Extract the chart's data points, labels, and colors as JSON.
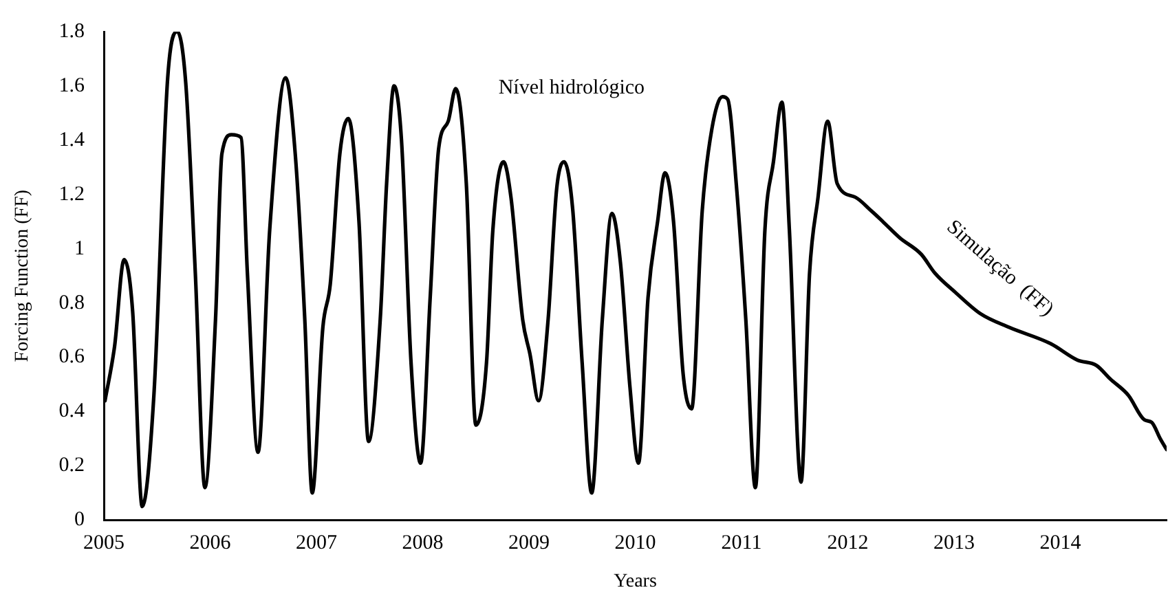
{
  "chart_data": {
    "type": "line",
    "xlabel": "Years",
    "ylabel": "Forcing Function (FF)",
    "x": [
      2005.01,
      2005.1,
      2005.19,
      2005.27,
      2005.36,
      2005.47,
      2005.6,
      2005.69,
      2005.77,
      2005.86,
      2005.95,
      2006.05,
      2006.11,
      2006.2,
      2006.29,
      2006.35,
      2006.45,
      2006.56,
      2006.71,
      2006.8,
      2006.89,
      2006.96,
      2007.06,
      2007.13,
      2007.22,
      2007.3,
      2007.4,
      2007.49,
      2007.6,
      2007.66,
      2007.73,
      2007.8,
      2007.89,
      2007.98,
      2008.07,
      2008.15,
      2008.24,
      2008.31,
      2008.41,
      2008.5,
      2008.6,
      2008.66,
      2008.76,
      2008.83,
      2008.94,
      2009.01,
      2009.09,
      2009.18,
      2009.26,
      2009.33,
      2009.41,
      2009.5,
      2009.59,
      2009.69,
      2009.78,
      2009.86,
      2009.95,
      2010.03,
      2010.12,
      2010.21,
      2010.28,
      2010.36,
      2010.45,
      2010.53,
      2010.63,
      2010.72,
      2010.82,
      2010.87,
      2010.95,
      2011.04,
      2011.13,
      2011.22,
      2011.3,
      2011.38,
      2011.45,
      2011.56,
      2011.64,
      2011.72,
      2011.81,
      2011.9,
      2012.07,
      2012.22,
      2012.33,
      2012.49,
      2012.69,
      2012.82,
      2013.01,
      2013.25,
      2013.52,
      2013.91,
      2014.16,
      2014.34,
      2014.47,
      2014.64,
      2014.79,
      2014.86,
      2014.94,
      2015.0
    ],
    "series": [
      {
        "color": "#000000",
        "values": [
          0.44,
          0.64,
          0.96,
          0.77,
          0.05,
          0.46,
          1.63,
          1.8,
          1.61,
          0.91,
          0.12,
          0.74,
          1.35,
          1.42,
          1.41,
          0.91,
          0.25,
          1.07,
          1.63,
          1.35,
          0.74,
          0.1,
          0.71,
          0.87,
          1.35,
          1.48,
          1.1,
          0.29,
          0.74,
          1.24,
          1.6,
          1.4,
          0.58,
          0.21,
          0.82,
          1.37,
          1.47,
          1.59,
          1.24,
          0.35,
          0.58,
          1.07,
          1.32,
          1.19,
          0.74,
          0.61,
          0.44,
          0.74,
          1.22,
          1.32,
          1.15,
          0.58,
          0.1,
          0.74,
          1.13,
          0.95,
          0.49,
          0.21,
          0.82,
          1.1,
          1.28,
          1.1,
          0.54,
          0.41,
          1.14,
          1.44,
          1.56,
          1.55,
          1.24,
          0.74,
          0.12,
          1.07,
          1.32,
          1.54,
          1.07,
          0.14,
          0.91,
          1.19,
          1.47,
          1.24,
          1.19,
          1.14,
          1.1,
          1.04,
          0.98,
          0.91,
          0.84,
          0.76,
          0.71,
          0.65,
          0.59,
          0.57,
          0.52,
          0.46,
          0.37,
          0.36,
          0.3,
          0.26
        ]
      }
    ],
    "xlim": [
      2005,
      2015
    ],
    "xticks": [
      2005,
      2006,
      2007,
      2008,
      2009,
      2010,
      2011,
      2012,
      2013,
      2014
    ],
    "ylim": [
      0,
      1.8
    ],
    "yticks": [
      0,
      0.2,
      0.4,
      0.6,
      0.8,
      1,
      1.2,
      1.4,
      1.6,
      1.8
    ],
    "grid": false,
    "legend": false,
    "marker": "none",
    "line_style": "solid",
    "annotations": [
      "Nível hidrológico",
      "Simulação  (FF)"
    ]
  }
}
